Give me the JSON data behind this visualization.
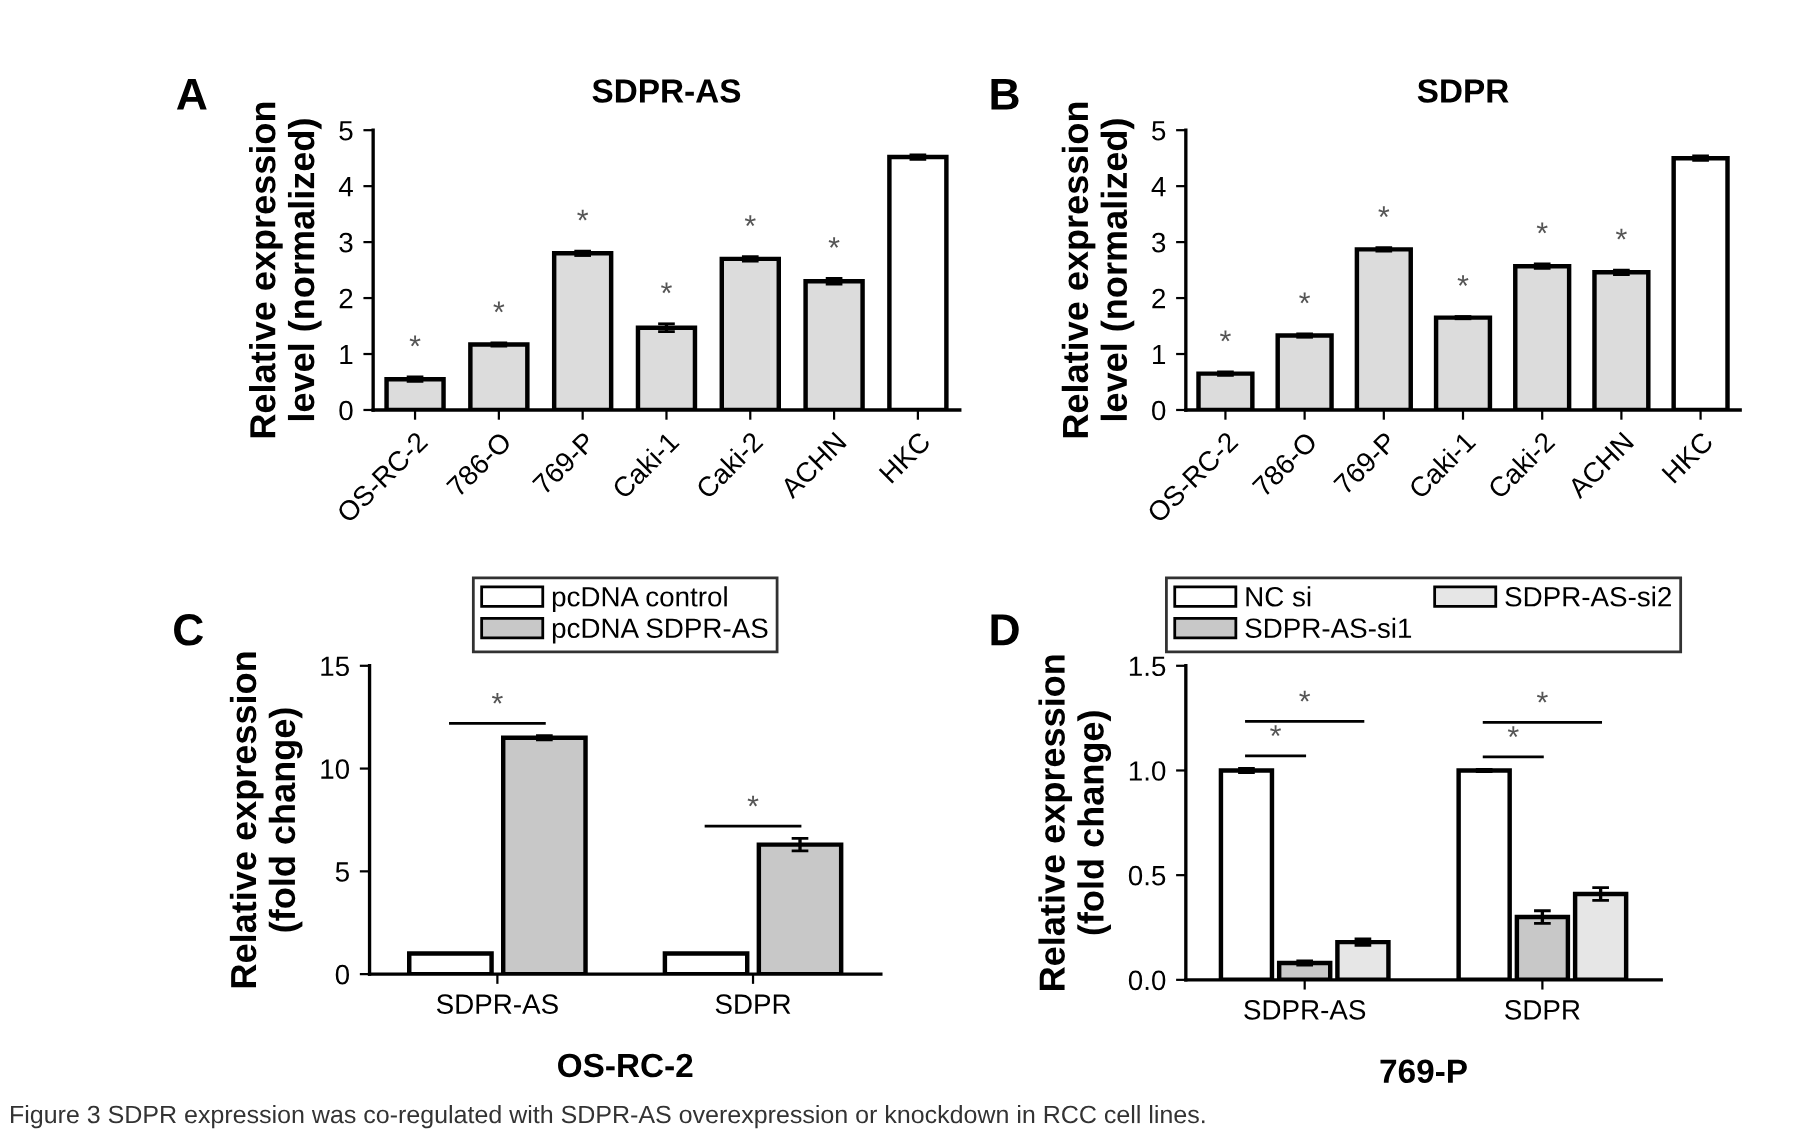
{
  "chart_data": [
    {
      "type": "bar",
      "title": "SDPR-AS",
      "ylabel": "Relative expression\nlevel (normalized)",
      "categories": [
        "OS-RC-2",
        "786-O",
        "769-P",
        "Caki-1",
        "Caki-2",
        "ACHN",
        "HKC"
      ],
      "values": [
        0.55,
        1.17,
        2.8,
        1.47,
        2.7,
        2.3,
        4.52
      ],
      "errors": [
        0.04,
        0.03,
        0.04,
        0.07,
        0.04,
        0.05,
        0.04
      ],
      "colors": [
        "#dcdcdc",
        "#dcdcdc",
        "#dcdcdc",
        "#dcdcdc",
        "#dcdcdc",
        "#dcdcdc",
        "#ffffff"
      ],
      "ylim": [
        0,
        5
      ],
      "yticks": [
        0,
        1,
        2,
        3,
        4,
        5
      ],
      "grid": false,
      "legend": false,
      "annotations": [
        "A",
        "*",
        "*",
        "*",
        "*",
        "*",
        "*"
      ]
    },
    {
      "type": "bar",
      "title": "SDPR",
      "ylabel": "Relative expression\nlevel (normalized)",
      "categories": [
        "OS-RC-2",
        "786-O",
        "769-P",
        "Caki-1",
        "Caki-2",
        "ACHN",
        "HKC"
      ],
      "values": [
        0.65,
        1.33,
        2.87,
        1.65,
        2.57,
        2.46,
        4.5
      ],
      "errors": [
        0.03,
        0.03,
        0.03,
        0.02,
        0.04,
        0.04,
        0.04
      ],
      "colors": [
        "#dcdcdc",
        "#dcdcdc",
        "#dcdcdc",
        "#dcdcdc",
        "#dcdcdc",
        "#dcdcdc",
        "#ffffff"
      ],
      "ylim": [
        0,
        5
      ],
      "yticks": [
        0,
        1,
        2,
        3,
        4,
        5
      ],
      "grid": false,
      "legend": false,
      "annotations": [
        "B",
        "*",
        "*",
        "*",
        "*",
        "*",
        "*"
      ]
    },
    {
      "type": "bar",
      "ylabel": "Relative expression\n(fold change)",
      "xlabel": "OS-RC-2",
      "categories": [
        "SDPR-AS",
        "SDPR"
      ],
      "series": [
        {
          "name": "pcDNA control",
          "color": "#ffffff",
          "values": [
            1,
            1
          ]
        },
        {
          "name": "pcDNA SDPR-AS",
          "color": "#c8c8c8",
          "values": [
            11.5,
            6.3
          ],
          "errors": [
            0.1,
            0.3
          ]
        }
      ],
      "ylim": [
        0,
        15
      ],
      "yticks": [
        0,
        5,
        10,
        15
      ],
      "grid": false,
      "legend": "top",
      "annotations": [
        "C",
        "*",
        "*"
      ]
    },
    {
      "type": "bar",
      "ylabel": "Relative expression\n(fold change)",
      "xlabel": "769-P",
      "categories": [
        "SDPR-AS",
        "SDPR"
      ],
      "series": [
        {
          "name": "NC si",
          "color": "#ffffff",
          "values": [
            1.0,
            1.0
          ],
          "errors": [
            0.01,
            0.005
          ]
        },
        {
          "name": "SDPR-AS-si1",
          "color": "#c8c8c8",
          "values": [
            0.08,
            0.3
          ],
          "errors": [
            0.01,
            0.03
          ]
        },
        {
          "name": "SDPR-AS-si2",
          "color": "#e6e6e6",
          "values": [
            0.18,
            0.41
          ],
          "errors": [
            0.015,
            0.03
          ]
        }
      ],
      "ylim": [
        0,
        1.5
      ],
      "yticks": [
        {
          "value": 0,
          "label": "0.0"
        },
        0.5,
        {
          "value": 1,
          "label": "1.0"
        },
        1.5
      ],
      "grid": false,
      "legend": "top",
      "annotations": [
        "D",
        "*",
        "*",
        "*",
        "*",
        "Figure 3 SDPR expression was co-regulated with SDPR-AS overexpression or knockdown in RCC cell lines."
      ]
    }
  ]
}
